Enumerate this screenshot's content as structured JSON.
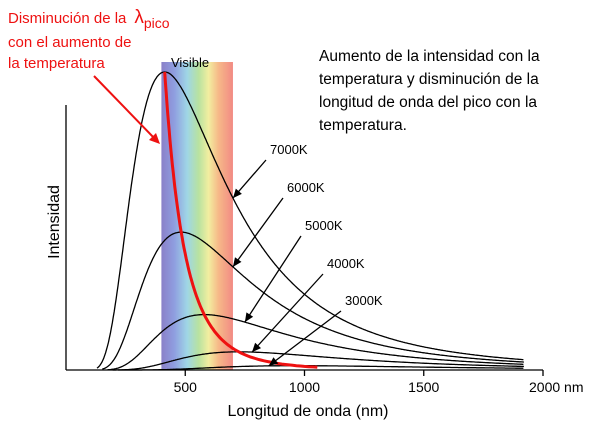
{
  "chart_data": {
    "type": "line",
    "title": "",
    "xlabel": "Longitud de onda  (nm)",
    "ylabel": "Intensidad",
    "x_unit": "nm",
    "xlim": [
      0,
      2000
    ],
    "x_ticks": [
      500,
      1000,
      1500,
      2000
    ],
    "x_tick_labels": [
      "500",
      "1000",
      "1500",
      "2000 nm"
    ],
    "grid": false,
    "legend": "none",
    "series": [
      {
        "name": "7000K",
        "temperature_k": 7000
      },
      {
        "name": "6000K",
        "temperature_k": 6000
      },
      {
        "name": "5000K",
        "temperature_k": 5000
      },
      {
        "name": "4000K",
        "temperature_k": 4000
      },
      {
        "name": "3000K",
        "temperature_k": 3000
      }
    ],
    "peak_line": {
      "label": "Disminución de  la",
      "label_line2": "con el aumento de",
      "label_line3": "la temperatura",
      "lambda_symbol": "λ",
      "lambda_sub": "pico"
    },
    "visible_band": {
      "label": "Visible",
      "x_range": [
        400,
        700
      ]
    },
    "annotation": [
      "Aumento de la intensidad con la",
      "temperatura y disminución de la",
      "longitud de onda del pico con la",
      "temperatura."
    ]
  },
  "colors": {
    "peak_line": "#ee1111",
    "curves": "#000000"
  }
}
